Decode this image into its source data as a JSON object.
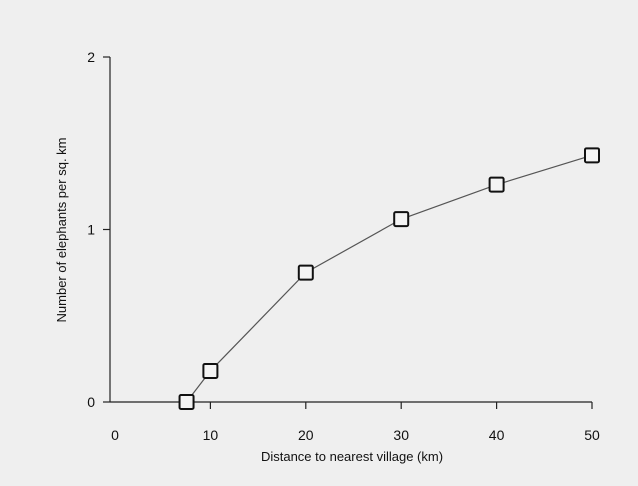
{
  "chart_data": {
    "type": "line",
    "xlabel": "Distance to nearest village (km)",
    "ylabel": "Number of elephants per sq. km",
    "x_ticks": [
      0,
      10,
      20,
      30,
      40,
      50
    ],
    "y_ticks": [
      0,
      1,
      2
    ],
    "xlim": [
      0,
      50
    ],
    "ylim": [
      0,
      2
    ],
    "grid": false,
    "marker": "open-square",
    "colors": {
      "line": "#555555",
      "marker_edge": "#111111",
      "background": "#efefef"
    },
    "series": [
      {
        "x": [
          7.5,
          10,
          20,
          30,
          40,
          50
        ],
        "y": [
          0.0,
          0.18,
          0.75,
          1.06,
          1.26,
          1.43
        ]
      }
    ]
  }
}
